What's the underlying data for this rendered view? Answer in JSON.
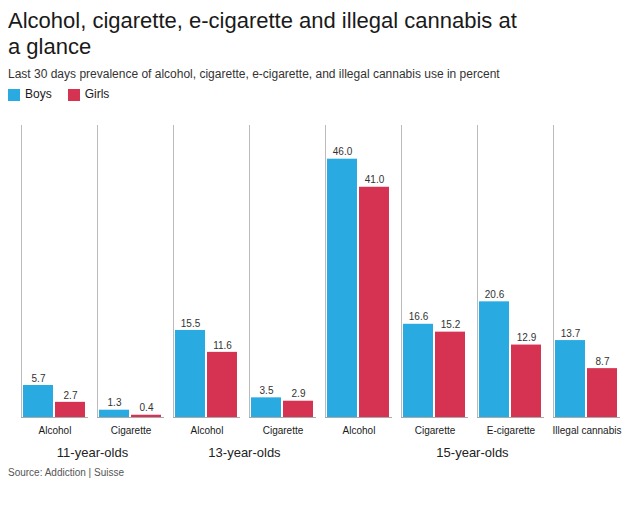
{
  "chart_data": {
    "type": "bar",
    "title": "Alcohol, cigarette, e-cigarette and illegal cannabis at a glance",
    "subtitle": "Last 30 days prevalence of alcohol, cigarette, e-cigarette, and illegal cannabis use in percent",
    "source": "Source: Addiction | Suisse",
    "categories": [
      "Alcohol",
      "Cigarette",
      "Alcohol",
      "Cigarette",
      "Alcohol",
      "Cigarette",
      "E-cigarette",
      "Illegal cannabis"
    ],
    "groups": [
      "11-year-olds",
      "11-year-olds",
      "13-year-olds",
      "13-year-olds",
      "15-year-olds",
      "15-year-olds",
      "15-year-olds",
      "15-year-olds"
    ],
    "series": [
      {
        "name": "Boys",
        "color": "#29abe2",
        "values": [
          5.7,
          1.3,
          15.5,
          3.5,
          46.0,
          16.6,
          20.6,
          13.7
        ],
        "value_labels": [
          "5.7",
          "1.3",
          "15.5",
          "3.5",
          "46.0",
          "16.6",
          "20.6",
          "13.7"
        ]
      },
      {
        "name": "Girls",
        "color": "#d63251",
        "values": [
          2.7,
          0.4,
          11.6,
          2.9,
          41.0,
          15.2,
          12.9,
          8.7
        ],
        "value_labels": [
          "2.7",
          "0.4",
          "11.6",
          "2.9",
          "41.0",
          "15.2",
          "12.9",
          "8.7"
        ]
      }
    ],
    "ylim": [
      0,
      52
    ],
    "data_labels": true,
    "tick_labels": "x",
    "legend": "top-left"
  }
}
